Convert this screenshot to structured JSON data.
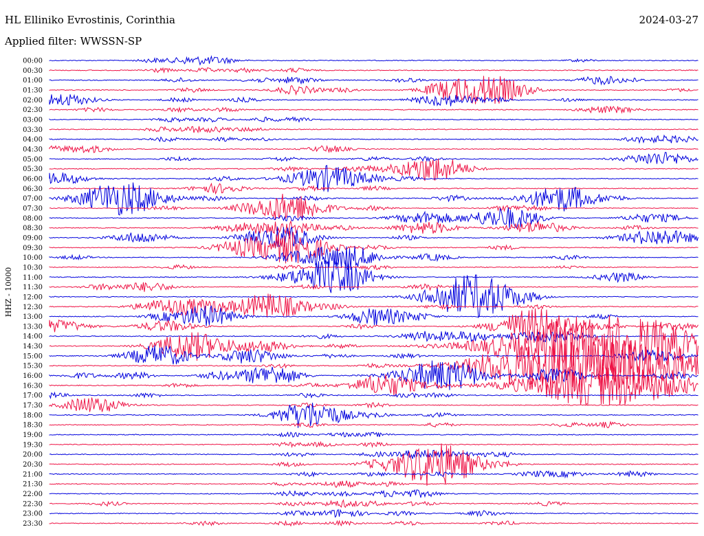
{
  "header": {
    "station": "HL Elliniko Evrostinis, Corinthia",
    "date": "2024-03-27",
    "filter": "Applied filter: WWSSN-SP"
  },
  "chart_data": {
    "type": "line",
    "ylabel": "HHZ - 10000",
    "trace_colors": [
      "#0000dd",
      "#ee1144"
    ],
    "rows": [
      {
        "time": "00:00",
        "events": [
          [
            0.16,
            3
          ],
          [
            0.21,
            4
          ],
          [
            0.24,
            4
          ],
          [
            0.27,
            3
          ],
          [
            0.82,
            2
          ]
        ]
      },
      {
        "time": "00:30",
        "events": [
          [
            0.17,
            3
          ],
          [
            0.24,
            3
          ],
          [
            0.3,
            3
          ],
          [
            0.38,
            3
          ]
        ]
      },
      {
        "time": "01:00",
        "events": [
          [
            0.2,
            3
          ],
          [
            0.32,
            3
          ],
          [
            0.38,
            5
          ],
          [
            0.55,
            3
          ],
          [
            0.85,
            6
          ],
          [
            0.9,
            2
          ]
        ]
      },
      {
        "time": "01:30",
        "events": [
          [
            0.22,
            3
          ],
          [
            0.38,
            6
          ],
          [
            0.45,
            3
          ],
          [
            0.6,
            3
          ],
          [
            0.63,
            10
          ],
          [
            0.67,
            11
          ],
          [
            0.7,
            9
          ],
          [
            0.97,
            2
          ]
        ]
      },
      {
        "time": "02:00",
        "events": [
          [
            0.02,
            9
          ],
          [
            0.2,
            3
          ],
          [
            0.3,
            3
          ],
          [
            0.61,
            9
          ],
          [
            0.69,
            3
          ],
          [
            0.8,
            2
          ]
        ]
      },
      {
        "time": "02:30",
        "events": [
          [
            0.07,
            3
          ],
          [
            0.2,
            3
          ],
          [
            0.27,
            3
          ],
          [
            0.84,
            4
          ],
          [
            0.88,
            4
          ]
        ]
      },
      {
        "time": "03:00",
        "events": [
          [
            0.19,
            3
          ],
          [
            0.25,
            3
          ],
          [
            0.33,
            3
          ],
          [
            0.38,
            3
          ]
        ]
      },
      {
        "time": "03:30",
        "events": [
          [
            0.17,
            3
          ],
          [
            0.22,
            4
          ],
          [
            0.26,
            3
          ],
          [
            0.31,
            3
          ]
        ]
      },
      {
        "time": "04:00",
        "events": [
          [
            0.18,
            3
          ],
          [
            0.27,
            3
          ],
          [
            0.33,
            2
          ],
          [
            0.91,
            4
          ],
          [
            0.95,
            4
          ],
          [
            0.98,
            3
          ]
        ]
      },
      {
        "time": "04:30",
        "events": [
          [
            0.0,
            4
          ],
          [
            0.04,
            3
          ],
          [
            0.07,
            4
          ],
          [
            0.43,
            5
          ]
        ]
      },
      {
        "time": "05:00",
        "events": [
          [
            0.2,
            3
          ],
          [
            0.36,
            3
          ],
          [
            0.5,
            3
          ],
          [
            0.58,
            3
          ],
          [
            0.94,
            10
          ]
        ]
      },
      {
        "time": "05:30",
        "events": [
          [
            0.37,
            3
          ],
          [
            0.48,
            4
          ],
          [
            0.58,
            12
          ],
          [
            0.6,
            8
          ]
        ]
      },
      {
        "time": "06:00",
        "events": [
          [
            0.01,
            9
          ],
          [
            0.27,
            3
          ],
          [
            0.42,
            12
          ],
          [
            0.44,
            8
          ],
          [
            0.5,
            3
          ],
          [
            0.55,
            3
          ]
        ]
      },
      {
        "time": "06:30",
        "events": [
          [
            0.26,
            7
          ],
          [
            0.4,
            3
          ],
          [
            0.5,
            3
          ]
        ]
      },
      {
        "time": "07:00",
        "events": [
          [
            0.1,
            12
          ],
          [
            0.12,
            14
          ],
          [
            0.25,
            3
          ],
          [
            0.4,
            3
          ],
          [
            0.62,
            4
          ],
          [
            0.78,
            12
          ],
          [
            0.8,
            8
          ],
          [
            0.87,
            3
          ]
        ]
      },
      {
        "time": "07:30",
        "events": [
          [
            0.18,
            3
          ],
          [
            0.3,
            3
          ],
          [
            0.36,
            12
          ],
          [
            0.38,
            10
          ],
          [
            0.5,
            3
          ],
          [
            0.7,
            3
          ],
          [
            0.74,
            4
          ]
        ]
      },
      {
        "time": "08:00",
        "events": [
          [
            0.37,
            4
          ],
          [
            0.58,
            9
          ],
          [
            0.69,
            10
          ],
          [
            0.72,
            8
          ],
          [
            0.92,
            6
          ],
          [
            0.96,
            3
          ]
        ]
      },
      {
        "time": "08:30",
        "events": [
          [
            0.3,
            7
          ],
          [
            0.37,
            9
          ],
          [
            0.45,
            3
          ],
          [
            0.58,
            9
          ],
          [
            0.75,
            9
          ],
          [
            0.9,
            3
          ]
        ]
      },
      {
        "time": "09:00",
        "events": [
          [
            0.14,
            8
          ],
          [
            0.3,
            3
          ],
          [
            0.35,
            10
          ],
          [
            0.37,
            8
          ],
          [
            0.55,
            3
          ],
          [
            0.94,
            12
          ]
        ]
      },
      {
        "time": "09:30",
        "events": [
          [
            0.29,
            7
          ],
          [
            0.36,
            14
          ],
          [
            0.38,
            10
          ],
          [
            0.5,
            3
          ],
          [
            0.7,
            3
          ]
        ]
      },
      {
        "time": "10:00",
        "events": [
          [
            0.04,
            3
          ],
          [
            0.39,
            9
          ],
          [
            0.45,
            10
          ],
          [
            0.47,
            8
          ],
          [
            0.59,
            5
          ],
          [
            0.8,
            3
          ]
        ]
      },
      {
        "time": "10:30",
        "events": [
          [
            0.2,
            3
          ],
          [
            0.37,
            3
          ],
          [
            0.5,
            3
          ],
          [
            0.8,
            2
          ]
        ]
      },
      {
        "time": "11:00",
        "events": [
          [
            0.42,
            14
          ],
          [
            0.44,
            10
          ],
          [
            0.46,
            6
          ],
          [
            0.88,
            7
          ]
        ]
      },
      {
        "time": "11:30",
        "events": [
          [
            0.08,
            4
          ],
          [
            0.15,
            7
          ],
          [
            0.4,
            3
          ],
          [
            0.58,
            4
          ]
        ]
      },
      {
        "time": "12:00",
        "events": [
          [
            0.6,
            3
          ],
          [
            0.64,
            12
          ],
          [
            0.65,
            14
          ],
          [
            0.68,
            10
          ],
          [
            0.74,
            3
          ]
        ]
      },
      {
        "time": "12:30",
        "events": [
          [
            0.17,
            8
          ],
          [
            0.23,
            10
          ],
          [
            0.33,
            8
          ],
          [
            0.35,
            12
          ],
          [
            0.44,
            3
          ],
          [
            0.6,
            3
          ],
          [
            0.75,
            3
          ]
        ]
      },
      {
        "time": "13:00",
        "events": [
          [
            0.17,
            3
          ],
          [
            0.23,
            10
          ],
          [
            0.25,
            7
          ],
          [
            0.49,
            6
          ],
          [
            0.52,
            9
          ],
          [
            0.57,
            3
          ],
          [
            0.85,
            3
          ]
        ]
      },
      {
        "time": "13:30",
        "events": [
          [
            0.01,
            9
          ],
          [
            0.18,
            8
          ],
          [
            0.48,
            3
          ],
          [
            0.73,
            10
          ],
          [
            0.75,
            12
          ],
          [
            0.77,
            8
          ],
          [
            0.86,
            4
          ],
          [
            0.97,
            5
          ]
        ]
      },
      {
        "time": "14:00",
        "events": [
          [
            0.42,
            3
          ],
          [
            0.58,
            7
          ],
          [
            0.65,
            7
          ],
          [
            0.72,
            3
          ],
          [
            0.78,
            9
          ]
        ]
      },
      {
        "time": "14:30",
        "events": [
          [
            0.21,
            10
          ],
          [
            0.23,
            12
          ],
          [
            0.33,
            8
          ],
          [
            0.45,
            3
          ],
          [
            0.7,
            3
          ],
          [
            0.84,
            12
          ],
          [
            0.86,
            40
          ],
          [
            0.88,
            10
          ],
          [
            0.92,
            4
          ]
        ]
      },
      {
        "time": "15:00",
        "events": [
          [
            0.16,
            9
          ],
          [
            0.18,
            8
          ],
          [
            0.29,
            5
          ],
          [
            0.32,
            8
          ],
          [
            0.44,
            3
          ],
          [
            0.55,
            3
          ],
          [
            0.93,
            9
          ]
        ]
      },
      {
        "time": "15:30",
        "events": [
          [
            0.35,
            3
          ],
          [
            0.5,
            3
          ],
          [
            0.68,
            7
          ],
          [
            0.72,
            7
          ],
          [
            0.79,
            7
          ],
          [
            0.86,
            40
          ]
        ]
      },
      {
        "time": "16:00",
        "events": [
          [
            0.05,
            4
          ],
          [
            0.13,
            5
          ],
          [
            0.26,
            5
          ],
          [
            0.33,
            9
          ],
          [
            0.35,
            7
          ],
          [
            0.59,
            14
          ],
          [
            0.61,
            9
          ],
          [
            0.65,
            5
          ],
          [
            0.78,
            10
          ],
          [
            0.96,
            5
          ]
        ]
      },
      {
        "time": "16:30",
        "events": [
          [
            0.2,
            3
          ],
          [
            0.4,
            3
          ],
          [
            0.51,
            10
          ],
          [
            0.53,
            8
          ],
          [
            0.6,
            3
          ],
          [
            0.8,
            3
          ],
          [
            0.86,
            30
          ]
        ]
      },
      {
        "time": "17:00",
        "events": [
          [
            0.0,
            4
          ],
          [
            0.15,
            3
          ],
          [
            0.4,
            3
          ],
          [
            0.55,
            3
          ],
          [
            0.6,
            3
          ]
        ]
      },
      {
        "time": "17:30",
        "events": [
          [
            0.05,
            6
          ],
          [
            0.08,
            8
          ],
          [
            0.4,
            3
          ],
          [
            0.5,
            3
          ]
        ]
      },
      {
        "time": "18:00",
        "events": [
          [
            0.37,
            3
          ],
          [
            0.4,
            9
          ],
          [
            0.41,
            11
          ],
          [
            0.5,
            3
          ],
          [
            0.6,
            3
          ]
        ]
      },
      {
        "time": "18:30",
        "events": [
          [
            0.4,
            3
          ],
          [
            0.6,
            3
          ],
          [
            0.8,
            3
          ],
          [
            0.86,
            4
          ]
        ]
      },
      {
        "time": "19:00",
        "events": [
          [
            0.37,
            3
          ],
          [
            0.45,
            3
          ],
          [
            0.5,
            3
          ]
        ]
      },
      {
        "time": "19:30",
        "events": [
          [
            0.37,
            3
          ],
          [
            0.42,
            3
          ],
          [
            0.5,
            3
          ]
        ]
      },
      {
        "time": "20:00",
        "events": [
          [
            0.38,
            3
          ],
          [
            0.5,
            3
          ],
          [
            0.58,
            8
          ],
          [
            0.66,
            3
          ],
          [
            0.7,
            3
          ]
        ]
      },
      {
        "time": "20:30",
        "events": [
          [
            0.37,
            3
          ],
          [
            0.5,
            3
          ],
          [
            0.58,
            12
          ],
          [
            0.59,
            14
          ],
          [
            0.62,
            10
          ],
          [
            0.7,
            3
          ]
        ]
      },
      {
        "time": "21:00",
        "events": [
          [
            0.4,
            3
          ],
          [
            0.5,
            3
          ],
          [
            0.6,
            3
          ],
          [
            0.75,
            4
          ],
          [
            0.8,
            4
          ],
          [
            0.9,
            4
          ]
        ]
      },
      {
        "time": "21:30",
        "events": [
          [
            0.37,
            3
          ],
          [
            0.45,
            5
          ],
          [
            0.52,
            3
          ]
        ]
      },
      {
        "time": "22:00",
        "events": [
          [
            0.38,
            4
          ],
          [
            0.45,
            3
          ],
          [
            0.52,
            4
          ],
          [
            0.57,
            5
          ]
        ]
      },
      {
        "time": "22:30",
        "events": [
          [
            0.09,
            3
          ],
          [
            0.38,
            3
          ],
          [
            0.45,
            5
          ],
          [
            0.5,
            3
          ],
          [
            0.57,
            3
          ],
          [
            0.77,
            3
          ]
        ]
      },
      {
        "time": "23:00",
        "events": [
          [
            0.38,
            3
          ],
          [
            0.45,
            6
          ],
          [
            0.54,
            3
          ],
          [
            0.67,
            4
          ]
        ]
      },
      {
        "time": "23:30",
        "events": [
          [
            0.24,
            3
          ],
          [
            0.37,
            3
          ],
          [
            0.45,
            3
          ],
          [
            0.55,
            3
          ],
          [
            0.7,
            3
          ]
        ]
      }
    ]
  }
}
